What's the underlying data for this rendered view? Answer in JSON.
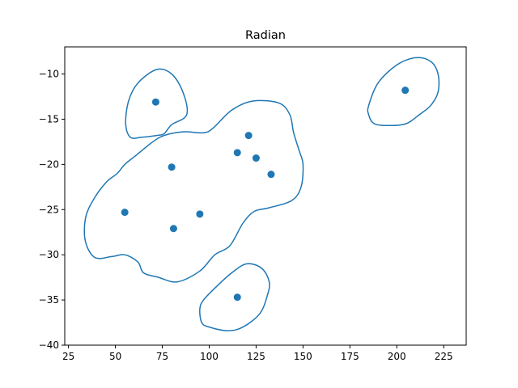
{
  "chart_data": {
    "type": "scatter",
    "title": "Radian",
    "xlabel": "",
    "ylabel": "",
    "xlim": [
      23,
      237
    ],
    "ylim": [
      -40,
      -7
    ],
    "xticks": [
      25,
      50,
      75,
      100,
      125,
      150,
      175,
      200,
      225
    ],
    "yticks": [
      -40,
      -35,
      -30,
      -25,
      -20,
      -15,
      -10
    ],
    "xtick_labels": [
      "25",
      "50",
      "75",
      "100",
      "125",
      "150",
      "175",
      "200",
      "225"
    ],
    "ytick_labels": [
      "−40",
      "−35",
      "−30",
      "−25",
      "−20",
      "−15",
      "−10"
    ],
    "grid": false,
    "color": "#1f77b4",
    "points": [
      {
        "x": 71.5,
        "y": -13.1
      },
      {
        "x": 204.5,
        "y": -11.8
      },
      {
        "x": 121,
        "y": -16.8
      },
      {
        "x": 115,
        "y": -18.7
      },
      {
        "x": 125,
        "y": -19.3
      },
      {
        "x": 80,
        "y": -20.3
      },
      {
        "x": 133,
        "y": -21.1
      },
      {
        "x": 55,
        "y": -25.3
      },
      {
        "x": 95,
        "y": -25.5
      },
      {
        "x": 81,
        "y": -27.1
      },
      {
        "x": 115,
        "y": -34.7
      }
    ],
    "contours": [
      [
        [
          80,
          -15.6
        ],
        [
          88,
          -14.5
        ],
        [
          86,
          -12
        ],
        [
          80,
          -10
        ],
        [
          72,
          -9.5
        ],
        [
          62,
          -11
        ],
        [
          57,
          -13
        ],
        [
          55.5,
          -15.5
        ],
        [
          58,
          -17
        ],
        [
          64,
          -17
        ],
        [
          72,
          -16.8
        ],
        [
          76,
          -16.6
        ]
      ],
      [
        [
          76,
          -16.8
        ],
        [
          86,
          -16.4
        ],
        [
          97,
          -16.5
        ],
        [
          102,
          -16
        ],
        [
          112,
          -14
        ],
        [
          123,
          -13
        ],
        [
          137,
          -13.2
        ],
        [
          143,
          -14.5
        ],
        [
          145,
          -16.5
        ],
        [
          148,
          -18.5
        ],
        [
          150,
          -20
        ],
        [
          149,
          -22.5
        ],
        [
          144,
          -24
        ],
        [
          132,
          -24.8
        ],
        [
          124,
          -25.2
        ],
        [
          118,
          -26.5
        ],
        [
          111,
          -29
        ],
        [
          103,
          -30
        ],
        [
          95,
          -31.8
        ],
        [
          83,
          -33
        ],
        [
          73,
          -32.5
        ],
        [
          65,
          -32
        ],
        [
          62,
          -30.8
        ],
        [
          55,
          -30
        ],
        [
          48,
          -30.2
        ],
        [
          39,
          -30.3
        ],
        [
          34,
          -28.5
        ],
        [
          34,
          -26
        ],
        [
          38,
          -24
        ],
        [
          45,
          -22
        ],
        [
          51,
          -21
        ],
        [
          55,
          -20
        ],
        [
          61,
          -19
        ],
        [
          70,
          -17.5
        ]
      ],
      [
        [
          185,
          -13.5
        ],
        [
          190,
          -11
        ],
        [
          200,
          -9
        ],
        [
          210,
          -8.2
        ],
        [
          218,
          -8.6
        ],
        [
          222,
          -10
        ],
        [
          222,
          -12
        ],
        [
          218,
          -13.5
        ],
        [
          212,
          -14.5
        ],
        [
          205,
          -15.5
        ],
        [
          196,
          -15.7
        ],
        [
          188,
          -15.5
        ],
        [
          185,
          -14.5
        ]
      ],
      [
        [
          95,
          -36
        ],
        [
          97,
          -35
        ],
        [
          104,
          -33.5
        ],
        [
          112,
          -32
        ],
        [
          120,
          -31
        ],
        [
          128,
          -31.5
        ],
        [
          132,
          -33
        ],
        [
          131,
          -34.5
        ],
        [
          127,
          -36.5
        ],
        [
          118,
          -38
        ],
        [
          110,
          -38.4
        ],
        [
          100,
          -38
        ],
        [
          96,
          -37.5
        ]
      ]
    ]
  }
}
